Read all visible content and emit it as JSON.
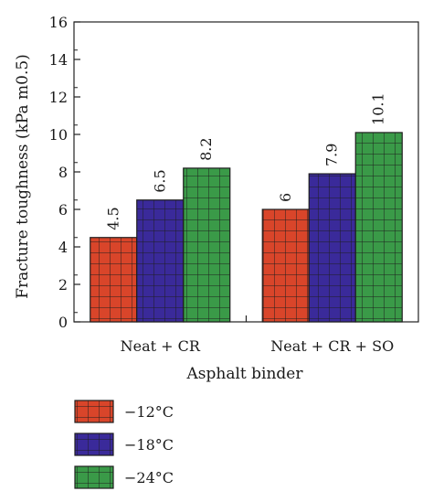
{
  "chart_data": {
    "type": "bar",
    "categories": [
      "Neat + CR",
      "Neat + CR + SO"
    ],
    "series": [
      {
        "name": "−12°C",
        "values": [
          4.5,
          6
        ],
        "color": "#d9452a"
      },
      {
        "name": "−18°C",
        "values": [
          6.5,
          7.9
        ],
        "color": "#3a2a9a"
      },
      {
        "name": "−24°C",
        "values": [
          8.2,
          10.1
        ],
        "color": "#3a9a48"
      }
    ],
    "data_labels": [
      [
        "4.5",
        "6"
      ],
      [
        "6.5",
        "7.9"
      ],
      [
        "8.2",
        "10.1"
      ]
    ],
    "xlabel": "Asphalt binder",
    "ylabel": "Fracture toughness (kPa m0.5)",
    "ylim": [
      0,
      16
    ],
    "yticks": [
      0,
      2,
      4,
      6,
      8,
      10,
      12,
      14,
      16
    ],
    "grid": false,
    "legend_position": "bottom-left",
    "bar_pattern": "grid"
  }
}
